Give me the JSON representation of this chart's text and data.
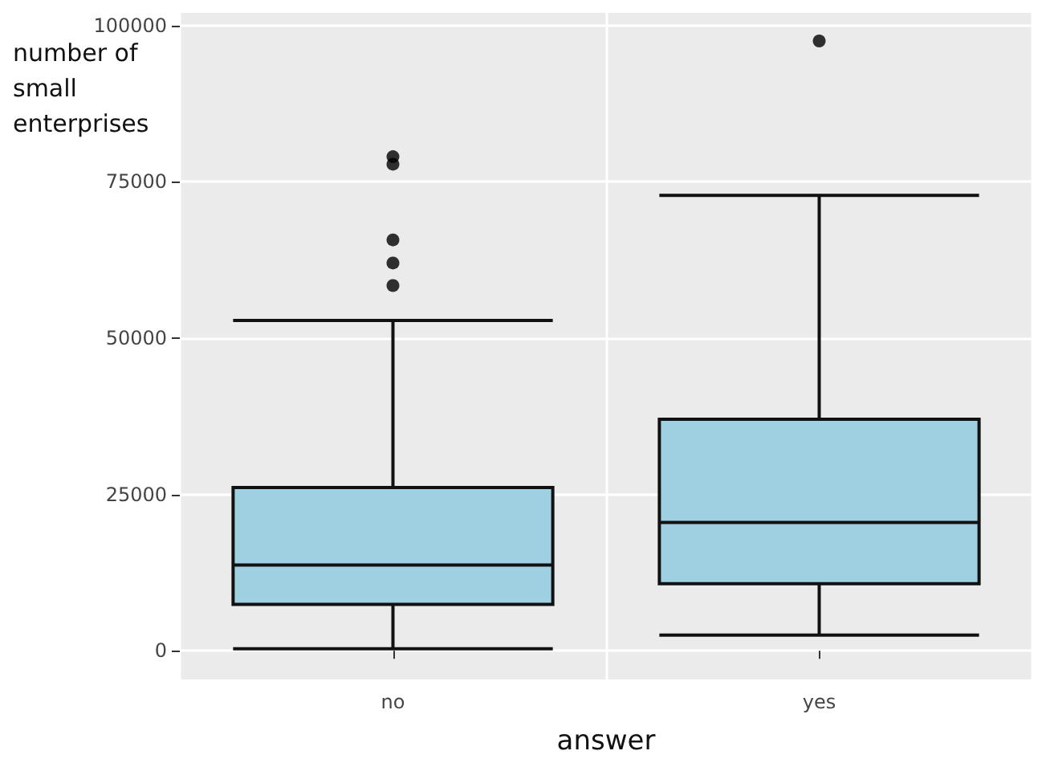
{
  "chart_data": {
    "type": "box",
    "xlabel": "answer",
    "ylabel": "number of small enterprises",
    "categories": [
      "no",
      "yes"
    ],
    "boxes": [
      {
        "low": 300,
        "q1": 7400,
        "median": 13700,
        "q3": 26100,
        "high": 52800,
        "outliers": [
          79000,
          77800,
          65700,
          62000,
          58400
        ]
      },
      {
        "low": 2500,
        "q1": 10700,
        "median": 20500,
        "q3": 37000,
        "high": 72800,
        "outliers": [
          97500
        ]
      }
    ],
    "color": "#9fd0e2",
    "ylim": [
      -4600,
      102000
    ],
    "yticks": [
      0,
      25000,
      50000,
      75000,
      100000
    ],
    "grid": true
  }
}
